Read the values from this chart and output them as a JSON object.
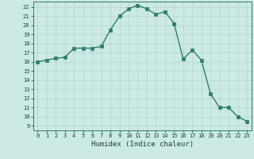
{
  "x": [
    0,
    1,
    2,
    3,
    4,
    5,
    6,
    7,
    8,
    9,
    10,
    11,
    12,
    13,
    14,
    15,
    16,
    17,
    18,
    19,
    20,
    21,
    22,
    23
  ],
  "y": [
    16,
    16.2,
    16.4,
    16.5,
    17.5,
    17.5,
    17.5,
    17.7,
    19.5,
    21.0,
    21.8,
    22.2,
    21.8,
    21.2,
    21.5,
    20.2,
    16.3,
    17.3,
    16.2,
    12.5,
    11.0,
    11.0,
    10.0,
    9.5
  ],
  "line_color": "#2e7d6e",
  "marker": "s",
  "markersize": 2.2,
  "linewidth": 1.0,
  "bg_color": "#cce9e5",
  "grid_color": "#b0d4cf",
  "xlabel": "Humidex (Indice chaleur)",
  "xlim": [
    -0.5,
    23.5
  ],
  "ylim": [
    8.5,
    22.6
  ],
  "yticks": [
    9,
    10,
    11,
    12,
    13,
    14,
    15,
    16,
    17,
    18,
    19,
    20,
    21,
    22
  ],
  "xticks": [
    0,
    1,
    2,
    3,
    4,
    5,
    6,
    7,
    8,
    9,
    10,
    11,
    12,
    13,
    14,
    15,
    16,
    17,
    18,
    19,
    20,
    21,
    22,
    23
  ],
  "tick_fontsize": 5.0,
  "xlabel_fontsize": 6.5,
  "spine_color": "#2e7d6e",
  "tick_color": "#2e7d6e",
  "label_color": "#1a4040"
}
